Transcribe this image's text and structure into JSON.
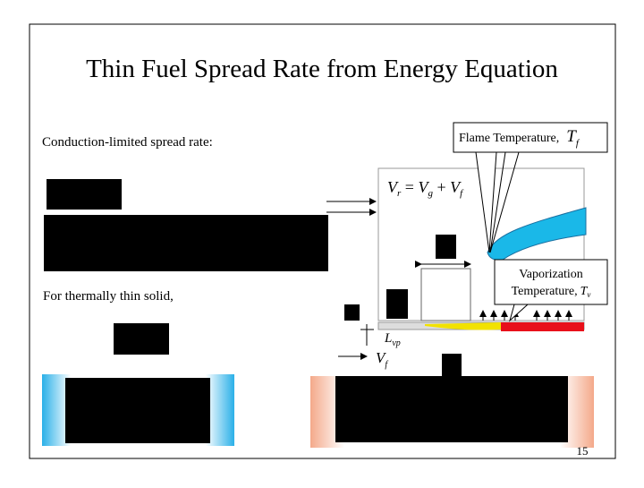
{
  "title": "Thin Fuel Spread Rate from Energy Equation",
  "left_text": {
    "conduction": "Conduction-limited spread rate:",
    "thin_solid": "For thermally thin solid,"
  },
  "diagram": {
    "flame_callout": {
      "label": "Flame Temperature,",
      "symbol": "T",
      "sub": "f"
    },
    "velocity_equation": {
      "lhs": "V",
      "lhs_sub": "r",
      "eq": " = ",
      "a": "V",
      "a_sub": "g",
      "plus": " + ",
      "b": "V",
      "b_sub": "f"
    },
    "vaporization_callout": {
      "line1": "Vaporization",
      "line2": "Temperature,",
      "symbol": "T",
      "sub": "v"
    },
    "length_label": {
      "symbol": "L",
      "sub": "vp"
    },
    "spread_label": {
      "symbol": "V",
      "sub": "f"
    }
  },
  "page_number": "15"
}
